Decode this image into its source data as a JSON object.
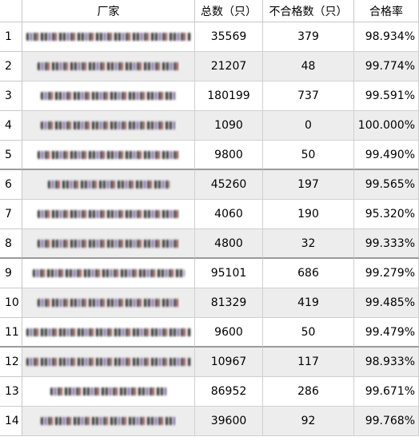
{
  "headers": [
    "厂家",
    "总数（只）",
    "不合格数（只）",
    "合格率"
  ],
  "rows": [
    {
      "num": "1",
      "total": "35569",
      "failed": "379",
      "rate": "98.934%"
    },
    {
      "num": "2",
      "total": "21207",
      "failed": "48",
      "rate": "99.774%"
    },
    {
      "num": "3",
      "total": "180199",
      "failed": "737",
      "rate": "99.591%"
    },
    {
      "num": "4",
      "total": "1090",
      "failed": "0",
      "rate": "100.000%"
    },
    {
      "num": "5",
      "total": "9800",
      "failed": "50",
      "rate": "99.490%"
    },
    {
      "num": "6",
      "total": "45260",
      "failed": "197",
      "rate": "99.565%"
    },
    {
      "num": "7",
      "total": "4060",
      "failed": "190",
      "rate": "95.320%"
    },
    {
      "num": "8",
      "total": "4800",
      "failed": "32",
      "rate": "99.333%"
    },
    {
      "num": "9",
      "total": "95101",
      "failed": "686",
      "rate": "99.279%"
    },
    {
      "num": "10",
      "total": "81329",
      "failed": "419",
      "rate": "99.485%"
    },
    {
      "num": "11",
      "total": "9600",
      "failed": "50",
      "rate": "99.479%"
    },
    {
      "num": "12",
      "total": "10967",
      "failed": "117",
      "rate": "98.933%"
    },
    {
      "num": "13",
      "total": "86952",
      "failed": "286",
      "rate": "99.671%"
    },
    {
      "num": "14",
      "total": "39600",
      "failed": "92",
      "rate": "99.768%"
    }
  ],
  "colors": {
    "shade": "#ededed",
    "plain": "#ffffff",
    "gridline": "#d0d0d0"
  }
}
